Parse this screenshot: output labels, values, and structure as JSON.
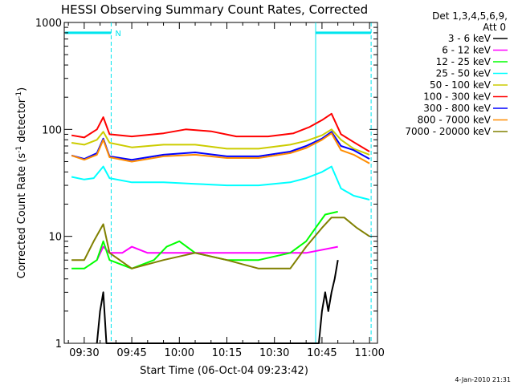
{
  "chart_data": {
    "type": "line",
    "title": "HESSI Observing Summary Count Rates, Corrected",
    "xlabel": "Start Time (06-Oct-04 09:23:42)",
    "ylabel_main": "Corrected Count Rate (s",
    "ylabel_sup1": "-1",
    "ylabel_mid": " detector",
    "ylabel_sup2": "-1",
    "ylabel_end": ")",
    "y_scale": "log",
    "ylim": [
      1,
      1000
    ],
    "xlim_minutes": [
      "09:23:42",
      "11:02"
    ],
    "x_ticks": [
      {
        "t": 30,
        "label": "09:30"
      },
      {
        "t": 45,
        "label": "09:45"
      },
      {
        "t": 60,
        "label": "10:00"
      },
      {
        "t": 75,
        "label": "10:15"
      },
      {
        "t": 90,
        "label": "10:30"
      },
      {
        "t": 105,
        "label": "10:45"
      },
      {
        "t": 120,
        "label": "11:00"
      }
    ],
    "y_ticks": [
      {
        "v": 1,
        "label": "1"
      },
      {
        "v": 10,
        "label": "10"
      },
      {
        "v": 100,
        "label": "100"
      },
      {
        "v": 1000,
        "label": "1000"
      }
    ],
    "legend_header": [
      "Det 1,3,4,5,6,9,",
      "Att 0"
    ],
    "legend_placement": "right",
    "night_marker_label": "N",
    "timestamp": "4-Jan-2010 21:31",
    "series": [
      {
        "name": "3 - 6 keV",
        "color": "#000000",
        "points": [
          [
            34,
            1
          ],
          [
            35,
            2
          ],
          [
            36,
            3
          ],
          [
            37,
            1
          ],
          [
            104,
            1
          ],
          [
            105,
            2
          ],
          [
            106,
            3
          ],
          [
            107,
            2
          ],
          [
            108,
            3
          ],
          [
            109,
            4
          ],
          [
            110,
            6
          ]
        ]
      },
      {
        "name": "6 - 12 keV",
        "color": "#ff00ff",
        "points": [
          [
            34,
            6
          ],
          [
            36,
            8
          ],
          [
            38,
            7
          ],
          [
            42,
            7
          ],
          [
            45,
            8
          ],
          [
            50,
            7
          ],
          [
            60,
            7
          ],
          [
            70,
            7
          ],
          [
            80,
            7
          ],
          [
            90,
            7
          ],
          [
            100,
            7
          ],
          [
            110,
            8
          ]
        ]
      },
      {
        "name": "12 - 25 keV",
        "color": "#00ff00",
        "points": [
          [
            26,
            5
          ],
          [
            30,
            5
          ],
          [
            34,
            6
          ],
          [
            36,
            9
          ],
          [
            38,
            6
          ],
          [
            45,
            5
          ],
          [
            52,
            6
          ],
          [
            56,
            8
          ],
          [
            60,
            9
          ],
          [
            65,
            7
          ],
          [
            75,
            6
          ],
          [
            85,
            6
          ],
          [
            95,
            7
          ],
          [
            100,
            9
          ],
          [
            103,
            12
          ],
          [
            106,
            16
          ],
          [
            110,
            17
          ]
        ]
      },
      {
        "name": "25 - 50 keV",
        "color": "#00ffff",
        "points": [
          [
            26,
            36
          ],
          [
            30,
            34
          ],
          [
            33,
            35
          ],
          [
            36,
            45
          ],
          [
            38,
            35
          ],
          [
            45,
            32
          ],
          [
            55,
            32
          ],
          [
            65,
            31
          ],
          [
            75,
            30
          ],
          [
            85,
            30
          ],
          [
            95,
            32
          ],
          [
            100,
            35
          ],
          [
            105,
            40
          ],
          [
            108,
            45
          ],
          [
            111,
            28
          ],
          [
            115,
            24
          ],
          [
            120,
            22
          ]
        ]
      },
      {
        "name": "50 - 100 keV",
        "color": "#cccc00",
        "points": [
          [
            26,
            75
          ],
          [
            30,
            72
          ],
          [
            34,
            80
          ],
          [
            36,
            95
          ],
          [
            38,
            75
          ],
          [
            45,
            68
          ],
          [
            55,
            72
          ],
          [
            65,
            72
          ],
          [
            75,
            66
          ],
          [
            85,
            66
          ],
          [
            95,
            72
          ],
          [
            100,
            78
          ],
          [
            105,
            88
          ],
          [
            108,
            100
          ],
          [
            111,
            80
          ],
          [
            115,
            66
          ],
          [
            120,
            58
          ]
        ]
      },
      {
        "name": "100 - 300 keV",
        "color": "#ff0000",
        "points": [
          [
            26,
            88
          ],
          [
            30,
            84
          ],
          [
            34,
            100
          ],
          [
            36,
            130
          ],
          [
            38,
            90
          ],
          [
            45,
            86
          ],
          [
            55,
            92
          ],
          [
            62,
            100
          ],
          [
            70,
            96
          ],
          [
            78,
            86
          ],
          [
            88,
            86
          ],
          [
            96,
            92
          ],
          [
            101,
            105
          ],
          [
            105,
            122
          ],
          [
            108,
            140
          ],
          [
            111,
            90
          ],
          [
            115,
            76
          ],
          [
            120,
            62
          ]
        ]
      },
      {
        "name": "300 - 800 keV",
        "color": "#0000ff",
        "points": [
          [
            26,
            57
          ],
          [
            30,
            53
          ],
          [
            34,
            60
          ],
          [
            36,
            82
          ],
          [
            38,
            56
          ],
          [
            45,
            52
          ],
          [
            55,
            58
          ],
          [
            65,
            61
          ],
          [
            75,
            56
          ],
          [
            85,
            56
          ],
          [
            95,
            62
          ],
          [
            100,
            70
          ],
          [
            105,
            82
          ],
          [
            108,
            95
          ],
          [
            111,
            70
          ],
          [
            115,
            64
          ],
          [
            120,
            53
          ]
        ]
      },
      {
        "name": "800 - 7000 keV",
        "color": "#ff8c00",
        "points": [
          [
            26,
            57
          ],
          [
            30,
            52
          ],
          [
            34,
            58
          ],
          [
            36,
            80
          ],
          [
            38,
            55
          ],
          [
            45,
            50
          ],
          [
            55,
            56
          ],
          [
            65,
            58
          ],
          [
            75,
            54
          ],
          [
            85,
            54
          ],
          [
            95,
            60
          ],
          [
            100,
            67
          ],
          [
            105,
            80
          ],
          [
            108,
            92
          ],
          [
            111,
            64
          ],
          [
            115,
            58
          ],
          [
            120,
            48
          ]
        ]
      },
      {
        "name": "7000 - 20000 keV",
        "color": "#808000",
        "points": [
          [
            26,
            6
          ],
          [
            30,
            6
          ],
          [
            33,
            9
          ],
          [
            36,
            13
          ],
          [
            38,
            7
          ],
          [
            45,
            5
          ],
          [
            55,
            6
          ],
          [
            65,
            7
          ],
          [
            75,
            6
          ],
          [
            85,
            5
          ],
          [
            95,
            5
          ],
          [
            100,
            8
          ],
          [
            105,
            12
          ],
          [
            108,
            15
          ],
          [
            112,
            15
          ],
          [
            116,
            12
          ],
          [
            120,
            10
          ]
        ]
      }
    ]
  }
}
